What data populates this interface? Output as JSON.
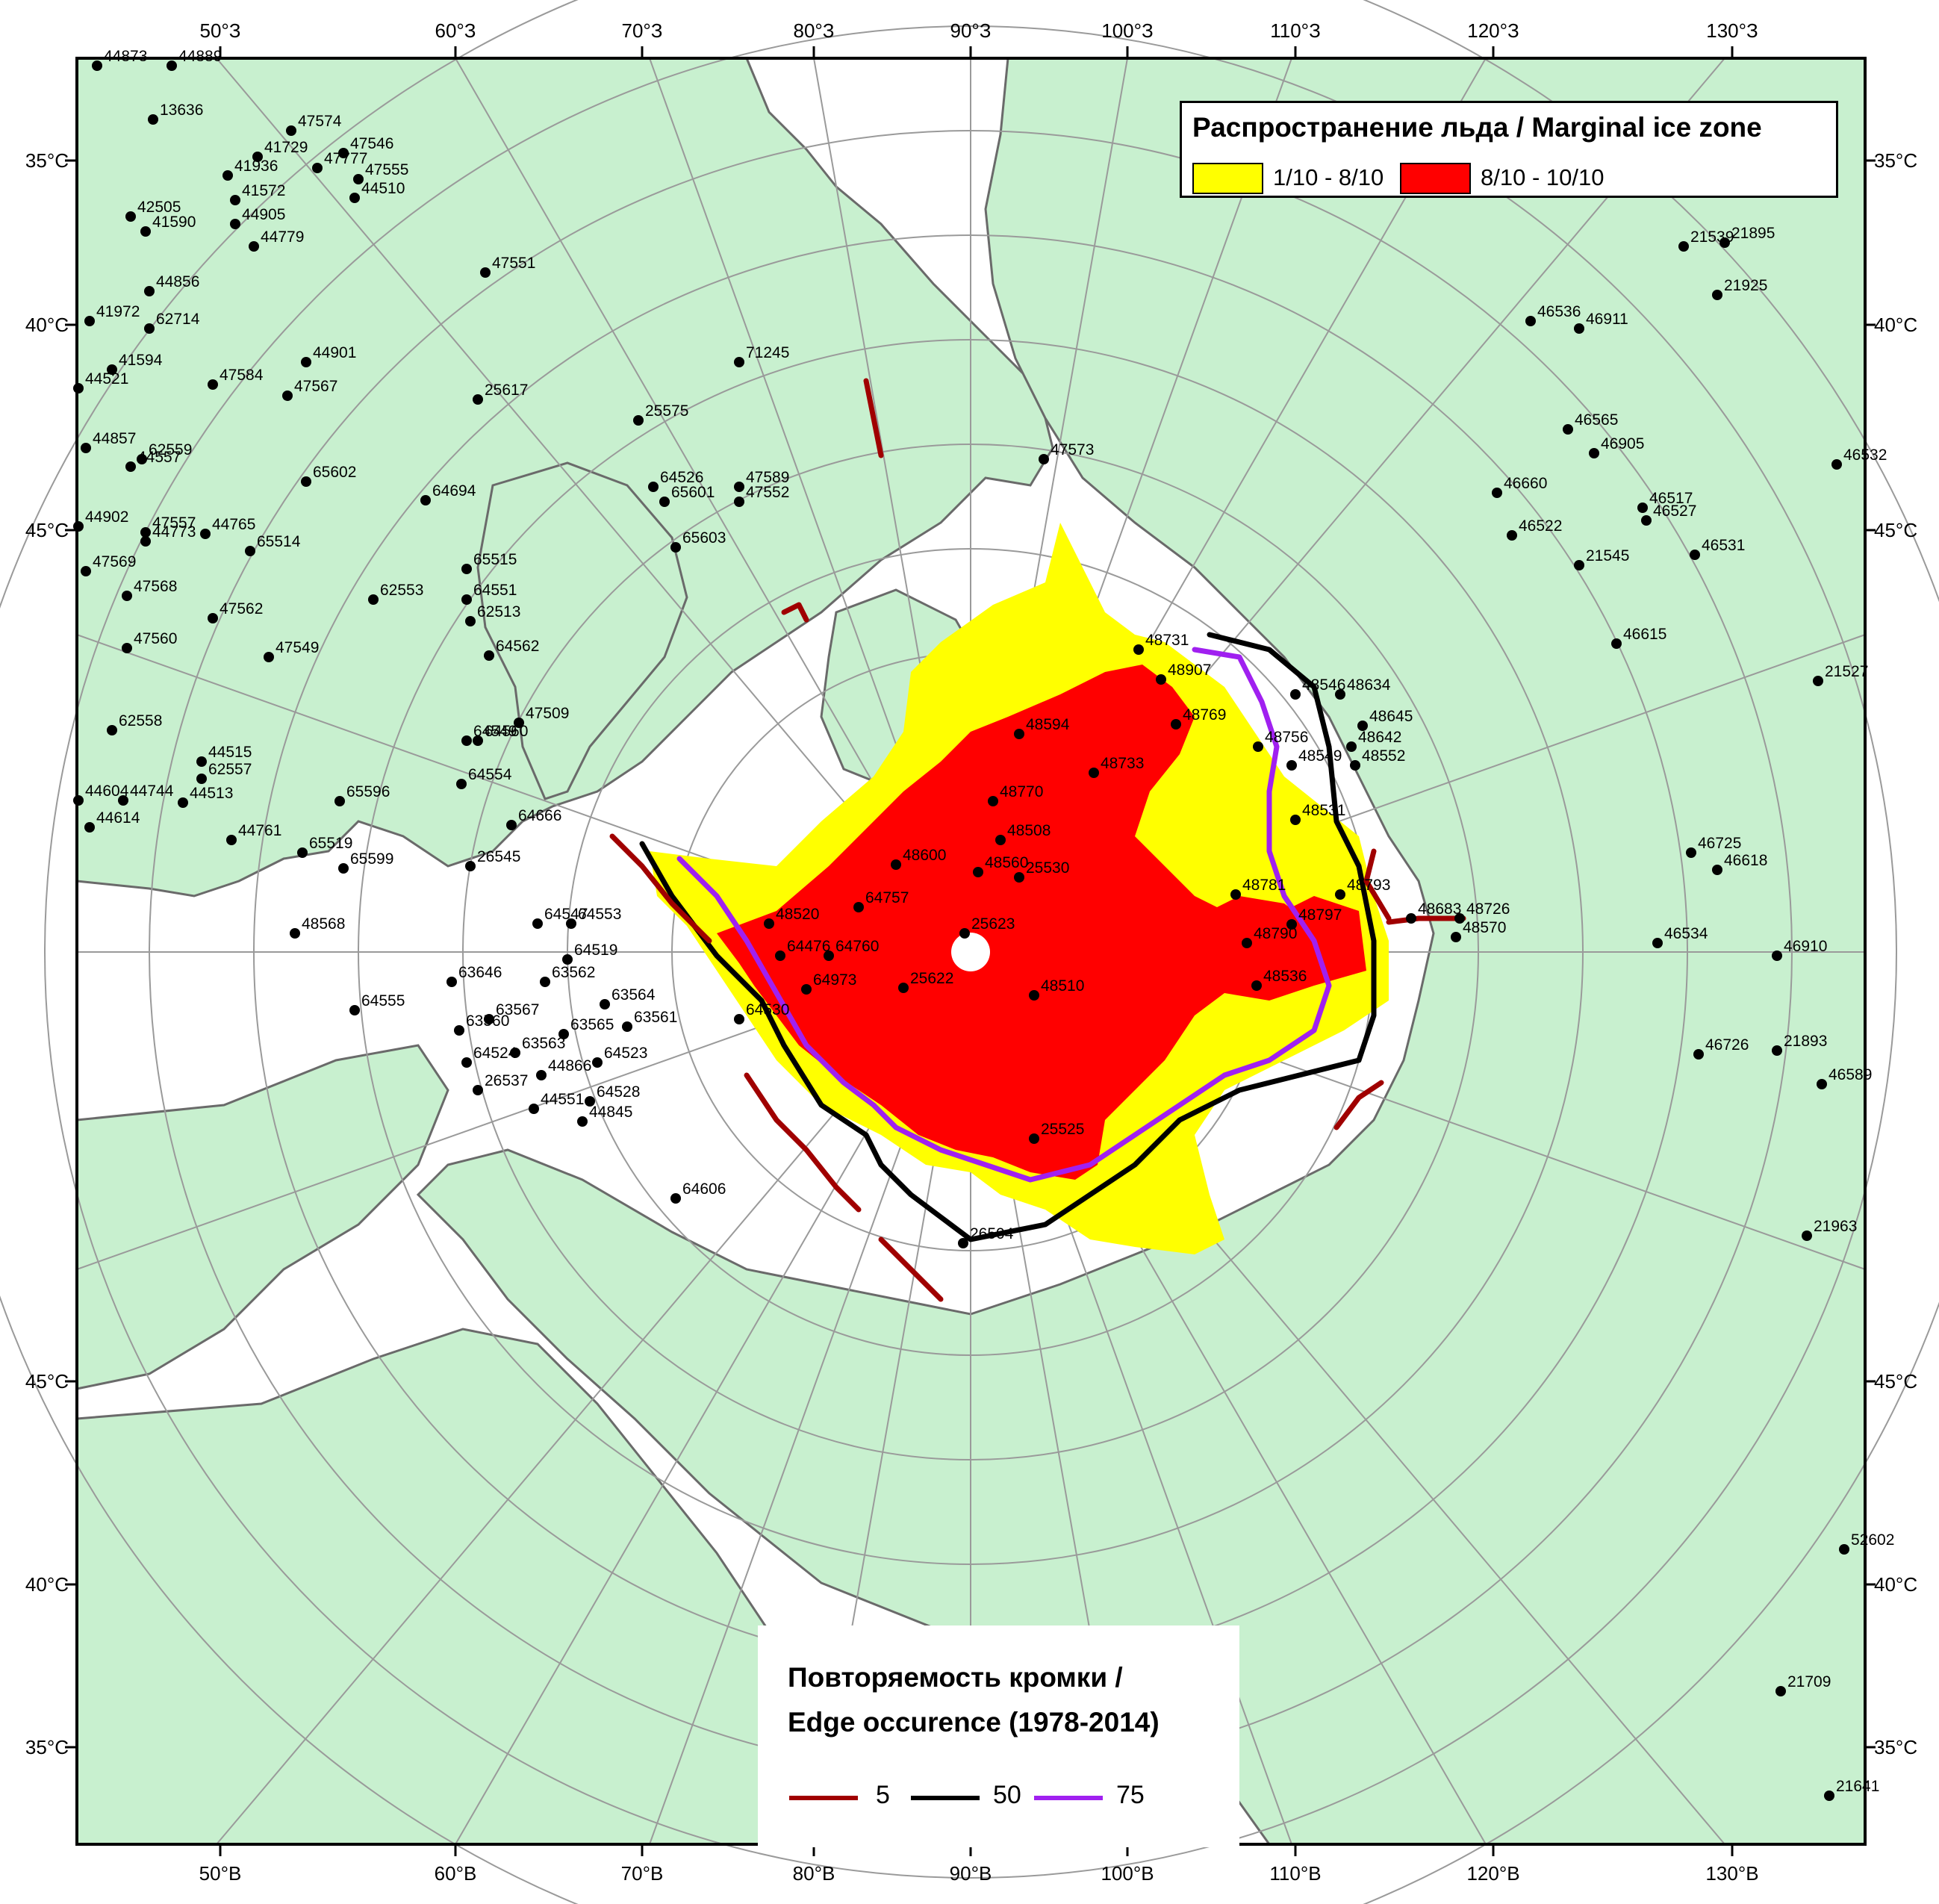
{
  "colors": {
    "land": "#c8f0cf",
    "coast": "#6a6a6a",
    "sea": "#ffffff",
    "graticule": "#9a9a9a",
    "ice_low": "#ffff00",
    "ice_high": "#ff0000",
    "edge_5": "#a00000",
    "edge_50": "#000000",
    "edge_75": "#a020f0"
  },
  "axes": {
    "top": [
      "50°З",
      "60°З",
      "70°З",
      "80°З",
      "90°З",
      "100°З",
      "110°З",
      "120°З",
      "130°З"
    ],
    "bottom": [
      "50°В",
      "60°В",
      "70°В",
      "80°В",
      "90°В",
      "100°В",
      "110°В",
      "120°В",
      "130°В"
    ],
    "left": [
      "35°C",
      "40°C",
      "45°C",
      "45°C",
      "40°C",
      "35°C"
    ],
    "right": [
      "35°C",
      "40°C",
      "45°C",
      "45°C",
      "40°C",
      "35°C"
    ]
  },
  "legend_ice": {
    "title": "Распространение льда / Marginal ice zone",
    "items": [
      {
        "label": "1/10 - 8/10",
        "color": "#ffff00"
      },
      {
        "label": "8/10 - 10/10",
        "color": "#ff0000"
      }
    ]
  },
  "legend_edge": {
    "title_line1": "Повторяемость кромки /",
    "title_line2": "Edge occurence (1978-2014)",
    "items": [
      {
        "label": "5",
        "color": "#a00000"
      },
      {
        "label": "50",
        "color": "#000000"
      },
      {
        "label": "75",
        "color": "#a020f0"
      }
    ]
  },
  "stations": [
    [
      "44873",
      130,
      88
    ],
    [
      "44889",
      230,
      88
    ],
    [
      "13636",
      205,
      160
    ],
    [
      "47574",
      390,
      175
    ],
    [
      "41729",
      345,
      210
    ],
    [
      "47546",
      460,
      205
    ],
    [
      "41936",
      305,
      235
    ],
    [
      "47777",
      425,
      225
    ],
    [
      "47555",
      480,
      240
    ],
    [
      "44510",
      475,
      265
    ],
    [
      "42505",
      175,
      290
    ],
    [
      "41572",
      315,
      268
    ],
    [
      "41590",
      195,
      310
    ],
    [
      "44905",
      315,
      300
    ],
    [
      "44779",
      340,
      330
    ],
    [
      "47551",
      650,
      365
    ],
    [
      "21539",
      2255,
      330
    ],
    [
      "21895",
      2310,
      325
    ],
    [
      "21925",
      2300,
      395
    ],
    [
      "44856",
      200,
      390
    ],
    [
      "41972",
      120,
      430
    ],
    [
      "62714",
      200,
      440
    ],
    [
      "46536",
      2050,
      430
    ],
    [
      "46911",
      2115,
      440
    ],
    [
      "41594",
      150,
      495
    ],
    [
      "44901",
      410,
      485
    ],
    [
      "71245",
      990,
      485
    ],
    [
      "47584",
      285,
      515
    ],
    [
      "47567",
      385,
      530
    ],
    [
      "25617",
      640,
      535
    ],
    [
      "44521",
      105,
      520
    ],
    [
      "25575",
      855,
      563
    ],
    [
      "46565",
      2100,
      575
    ],
    [
      "44857",
      115,
      600
    ],
    [
      "62559",
      190,
      615
    ],
    [
      "44557",
      175,
      625
    ],
    [
      "65602",
      410,
      645
    ],
    [
      "46905",
      2135,
      607
    ],
    [
      "46532",
      2460,
      622
    ],
    [
      "47573",
      1398,
      615
    ],
    [
      "64526",
      875,
      652
    ],
    [
      "47589",
      990,
      652
    ],
    [
      "65601",
      890,
      672
    ],
    [
      "47552",
      990,
      672
    ],
    [
      "64694",
      570,
      670
    ],
    [
      "46660",
      2005,
      660
    ],
    [
      "46517",
      2200,
      680
    ],
    [
      "46527",
      2205,
      697
    ],
    [
      "44902",
      105,
      705
    ],
    [
      "47557",
      195,
      713
    ],
    [
      "44773",
      195,
      725
    ],
    [
      "44765",
      275,
      715
    ],
    [
      "65514",
      335,
      738
    ],
    [
      "46522",
      2025,
      717
    ],
    [
      "65603",
      905,
      733
    ],
    [
      "65515",
      625,
      762
    ],
    [
      "21545",
      2115,
      757
    ],
    [
      "46531",
      2270,
      743
    ],
    [
      "47569",
      115,
      765
    ],
    [
      "62553",
      500,
      803
    ],
    [
      "64551",
      625,
      803
    ],
    [
      "47568",
      170,
      798
    ],
    [
      "47562",
      285,
      828
    ],
    [
      "62513",
      630,
      832
    ],
    [
      "46615",
      2165,
      862
    ],
    [
      "47560",
      170,
      868
    ],
    [
      "47549",
      360,
      880
    ],
    [
      "64562",
      655,
      878
    ],
    [
      "48731",
      1525,
      870
    ],
    [
      "48907",
      1555,
      910
    ],
    [
      "21527",
      2435,
      912
    ],
    [
      "48546",
      1735,
      930
    ],
    [
      "48634",
      1795,
      930
    ],
    [
      "48769",
      1575,
      970
    ],
    [
      "47509",
      695,
      968
    ],
    [
      "48594",
      1365,
      983
    ],
    [
      "48645",
      1825,
      972
    ],
    [
      "48756",
      1685,
      1000
    ],
    [
      "62558",
      150,
      978
    ],
    [
      "48642",
      1810,
      1000
    ],
    [
      "64549",
      625,
      992
    ],
    [
      "64560",
      640,
      992
    ],
    [
      "48549",
      1730,
      1025
    ],
    [
      "48552",
      1815,
      1025
    ],
    [
      "44515",
      270,
      1020
    ],
    [
      "48733",
      1465,
      1035
    ],
    [
      "62557",
      270,
      1043
    ],
    [
      "64554",
      618,
      1050
    ],
    [
      "48770",
      1330,
      1073
    ],
    [
      "65596",
      455,
      1073
    ],
    [
      "44604",
      105,
      1072
    ],
    [
      "44744",
      165,
      1072
    ],
    [
      "44513",
      245,
      1075
    ],
    [
      "64666",
      685,
      1105
    ],
    [
      "48531",
      1735,
      1098
    ],
    [
      "44614",
      120,
      1108
    ],
    [
      "44761",
      310,
      1125
    ],
    [
      "48508",
      1340,
      1125
    ],
    [
      "65519",
      405,
      1142
    ],
    [
      "65599",
      460,
      1163
    ],
    [
      "26545",
      630,
      1160
    ],
    [
      "46725",
      2265,
      1142
    ],
    [
      "46618",
      2300,
      1165
    ],
    [
      "48600",
      1200,
      1158
    ],
    [
      "48560",
      1310,
      1168
    ],
    [
      "25530",
      1365,
      1175
    ],
    [
      "48781",
      1655,
      1198
    ],
    [
      "48793",
      1795,
      1198
    ],
    [
      "64757",
      1150,
      1215
    ],
    [
      "48520",
      1030,
      1237
    ],
    [
      "48797",
      1730,
      1238
    ],
    [
      "48790",
      1670,
      1263
    ],
    [
      "48683",
      1890,
      1230
    ],
    [
      "48726",
      1955,
      1230
    ],
    [
      "48570",
      1950,
      1255
    ],
    [
      "48568",
      395,
      1250
    ],
    [
      "64547",
      720,
      1237
    ],
    [
      "64553",
      765,
      1237
    ],
    [
      "25623",
      1292,
      1250
    ],
    [
      "46534",
      2220,
      1263
    ],
    [
      "64476",
      1045,
      1280
    ],
    [
      "64760",
      1110,
      1280
    ],
    [
      "64519",
      760,
      1285
    ],
    [
      "46910",
      2380,
      1280
    ],
    [
      "48536",
      1683,
      1320
    ],
    [
      "63646",
      605,
      1315
    ],
    [
      "64973",
      1080,
      1325
    ],
    [
      "25622",
      1210,
      1323
    ],
    [
      "63562",
      730,
      1315
    ],
    [
      "48510",
      1385,
      1333
    ],
    [
      "64555",
      475,
      1353
    ],
    [
      "63564",
      810,
      1345
    ],
    [
      "63567",
      655,
      1365
    ],
    [
      "64530",
      990,
      1365
    ],
    [
      "63561",
      840,
      1375
    ],
    [
      "63560",
      615,
      1380
    ],
    [
      "63565",
      755,
      1385
    ],
    [
      "63563",
      690,
      1410
    ],
    [
      "64524",
      625,
      1423
    ],
    [
      "64523",
      800,
      1423
    ],
    [
      "46726",
      2275,
      1412
    ],
    [
      "21893",
      2380,
      1407
    ],
    [
      "44866",
      725,
      1440
    ],
    [
      "26537",
      640,
      1460
    ],
    [
      "46589",
      2440,
      1452
    ],
    [
      "64528",
      790,
      1475
    ],
    [
      "44551",
      715,
      1485
    ],
    [
      "44845",
      780,
      1502
    ],
    [
      "25525",
      1385,
      1525
    ],
    [
      "64606",
      905,
      1605
    ],
    [
      "26504",
      1290,
      1665
    ],
    [
      "21963",
      2420,
      1655
    ],
    [
      "52602",
      2470,
      2075
    ],
    [
      "21709",
      2385,
      2265
    ],
    [
      "21641",
      2450,
      2405
    ]
  ]
}
